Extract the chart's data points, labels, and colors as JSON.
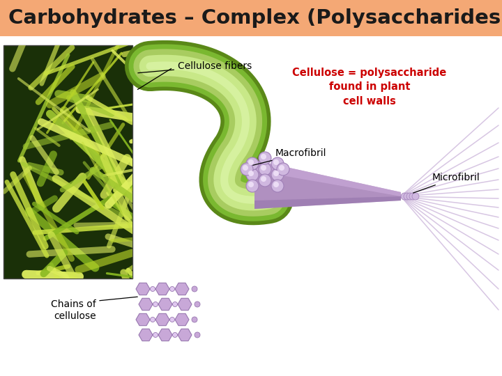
{
  "title": "Carbohydrates – Complex (Polysaccharides)",
  "title_color": "#1a1a1a",
  "title_bg": "#f4a875",
  "bg_color": "#ffffff",
  "label_cellulose_fibers": "Cellulose fibers",
  "label_macrofibril": "Macrofibril",
  "label_microfibril": "Microfibril",
  "label_chains_line1": "Chains of",
  "label_chains_line2": "cellulose",
  "label_definition_line1": "Cellulose = polysaccharide",
  "label_definition_line2": "found in plant",
  "label_definition_line3": "cell walls",
  "definition_color": "#cc0000",
  "photo_bg": "#1a3008",
  "fiber_colors": [
    "#c8e040",
    "#a0c830",
    "#d4e850",
    "#88b820",
    "#e0f060",
    "#b8d428"
  ],
  "tube_outer": "#7ab830",
  "tube_mid": "#a8cc60",
  "tube_light": "#c8e888",
  "tube_highlight": "#e0f8b0",
  "cone_color": "#b090c0",
  "cone_light": "#c8a8d8",
  "cone_dark": "#9070a8",
  "strand_color": "#c8b0d8",
  "circle_face": "#d0b8e0",
  "circle_edge": "#a080b8",
  "hex_face": "#c8a8d8",
  "hex_edge": "#9878b0",
  "connector_color": "#a888b8"
}
